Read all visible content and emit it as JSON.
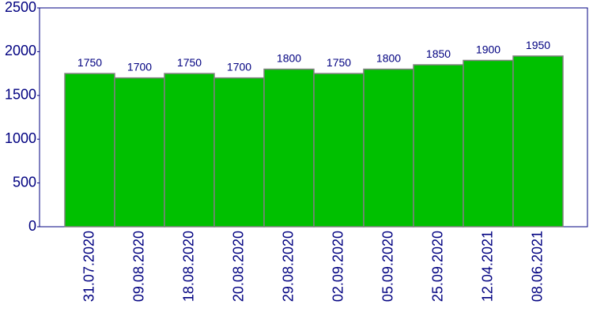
{
  "chart_data": {
    "type": "bar",
    "categories": [
      "31.07.2020",
      "09.08.2020",
      "18.08.2020",
      "20.08.2020",
      "29.08.2020",
      "02.09.2020",
      "05.09.2020",
      "25.09.2020",
      "12.04.2021",
      "08.06.2021"
    ],
    "values": [
      1750,
      1700,
      1750,
      1700,
      1800,
      1750,
      1800,
      1850,
      1900,
      1950
    ],
    "color": "#00c000",
    "ylim": [
      0,
      2500
    ],
    "yticks": [
      0,
      500,
      1000,
      1500,
      2000,
      2500
    ]
  }
}
